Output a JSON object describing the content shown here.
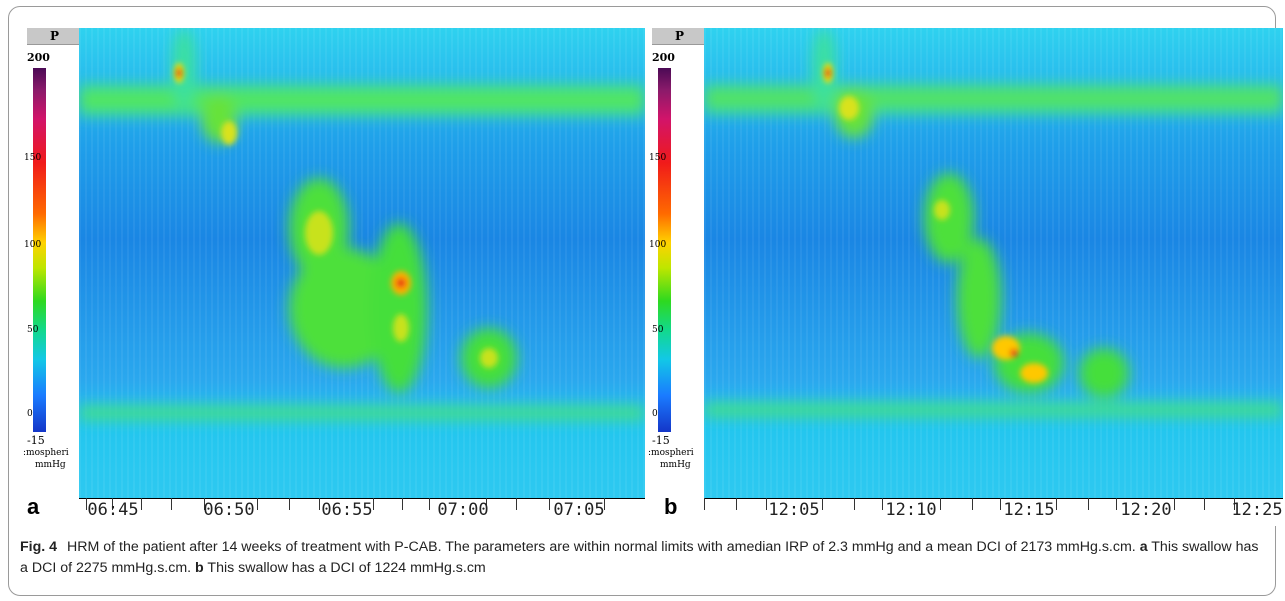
{
  "figure": {
    "panels": [
      {
        "id": "a",
        "letter": "a",
        "header": "P",
        "colorbar": {
          "ticks": [
            "200",
            "150",
            "100",
            "50",
            "0",
            "-15"
          ],
          "unit_line1": ":mospheri",
          "unit_line2": "mmHg",
          "colors": [
            "#4b0a55",
            "#d2146a",
            "#f01a1a",
            "#ff6a00",
            "#ffd200",
            "#2ed91f",
            "#12c8e6",
            "#1a7bff",
            "#1436c8"
          ]
        },
        "time_ticks": [
          "06:45",
          "06:50",
          "06:55",
          "07:00",
          "07:05"
        ]
      },
      {
        "id": "b",
        "letter": "b",
        "header": "P",
        "colorbar": {
          "ticks": [
            "200",
            "150",
            "100",
            "50",
            "0",
            "-15"
          ],
          "unit_line1": ":mospheri",
          "unit_line2": "mmHg",
          "colors": [
            "#4b0a55",
            "#d2146a",
            "#f01a1a",
            "#ff6a00",
            "#ffd200",
            "#2ed91f",
            "#12c8e6",
            "#1a7bff",
            "#1436c8"
          ]
        },
        "time_ticks": [
          "12:05",
          "12:10",
          "12:15",
          "12:20",
          "12:25"
        ]
      }
    ],
    "caption": {
      "label": "Fig. 4",
      "text": "HRM of the patient after 14 weeks of treatment with P-CAB. The parameters are within normal limits with amedian IRP of 2.3 mmHg and a mean DCI of 2173 mmHg.s.cm.",
      "a_letter": "a",
      "a_text": "This swallow has a DCI of 2275 mmHg.s.cm.",
      "b_letter": "b",
      "b_text": "This swallow has a DCI of 1224 mmHg.s.cm"
    }
  }
}
